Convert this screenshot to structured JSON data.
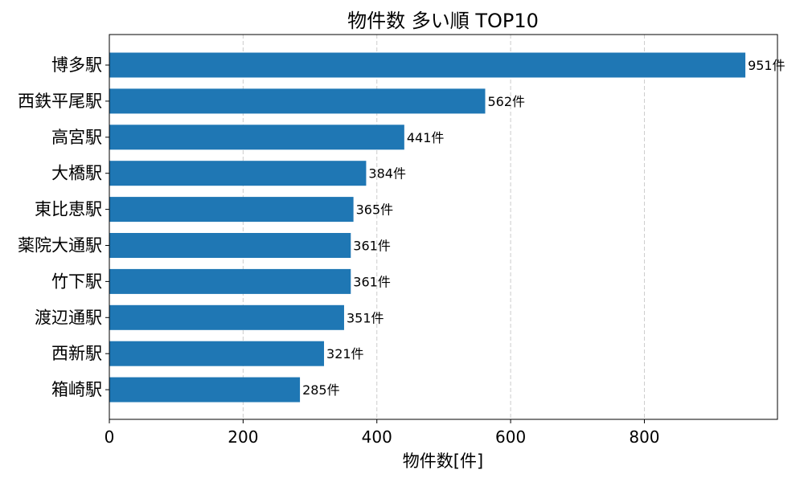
{
  "chart_data": {
    "type": "bar",
    "orientation": "horizontal",
    "title": "物件数 多い順 TOP10",
    "xlabel": "物件数[件]",
    "ylabel": "",
    "categories": [
      "博多駅",
      "西鉄平尾駅",
      "高宮駅",
      "大橋駅",
      "東比恵駅",
      "薬院大通駅",
      "竹下駅",
      "渡辺通駅",
      "西新駅",
      "箱崎駅"
    ],
    "values": [
      951,
      562,
      441,
      384,
      365,
      361,
      361,
      351,
      321,
      285
    ],
    "data_labels": [
      "951件",
      "562件",
      "441件",
      "384件",
      "365件",
      "361件",
      "361件",
      "351件",
      "321件",
      "285件"
    ],
    "xlim": [
      0,
      999
    ],
    "xticks": [
      0,
      200,
      400,
      600,
      800
    ],
    "xtick_labels": [
      "0",
      "200",
      "400",
      "600",
      "800"
    ],
    "grid": "x-dashed",
    "bar_color": "#1f77b4"
  }
}
